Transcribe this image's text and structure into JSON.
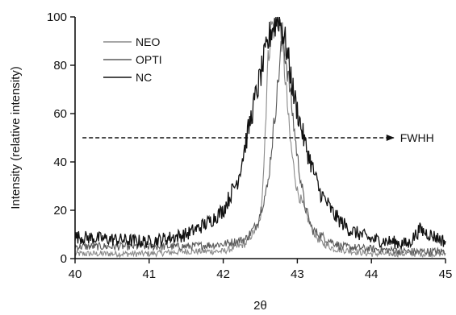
{
  "chart_data": {
    "type": "line",
    "title": "",
    "xlabel": "2θ",
    "ylabel": "Intensity (relative intensity)",
    "xlim": [
      40,
      45
    ],
    "ylim": [
      0,
      100
    ],
    "xticks": [
      40,
      41,
      42,
      43,
      44,
      45
    ],
    "yticks": [
      0,
      20,
      40,
      60,
      80,
      100
    ],
    "grid": false,
    "legend_position": "top-left",
    "series": [
      {
        "name": "NEO",
        "color": "#8a8a8a",
        "x": [
          40.0,
          40.5,
          41.0,
          41.5,
          42.0,
          42.3,
          42.5,
          42.55,
          42.6,
          42.65,
          42.7,
          42.75,
          42.8,
          42.85,
          42.9,
          42.95,
          43.0,
          43.1,
          43.2,
          43.3,
          43.5,
          44.0,
          44.5,
          45.0
        ],
        "y": [
          2,
          2,
          2,
          3,
          3,
          6,
          15,
          40,
          80,
          97,
          95,
          100,
          88,
          70,
          50,
          38,
          28,
          20,
          12,
          7,
          4,
          2,
          2,
          2
        ]
      },
      {
        "name": "OPTI",
        "color": "#5a5a5a",
        "x": [
          40.0,
          40.5,
          41.0,
          41.5,
          42.0,
          42.3,
          42.45,
          42.6,
          42.7,
          42.8,
          42.9,
          43.0,
          43.1,
          43.2,
          43.4,
          43.6,
          44.0,
          44.5,
          45.0
        ],
        "y": [
          5,
          5,
          5,
          5,
          6,
          8,
          14,
          30,
          60,
          93,
          70,
          42,
          22,
          12,
          8,
          5,
          4,
          3,
          3
        ]
      },
      {
        "name": "NC",
        "color": "#111111",
        "x": [
          40.0,
          40.5,
          41.0,
          41.5,
          41.8,
          42.0,
          42.2,
          42.4,
          42.55,
          42.65,
          42.75,
          42.85,
          42.95,
          43.1,
          43.3,
          43.5,
          43.7,
          44.0,
          44.5,
          44.65,
          45.0
        ],
        "y": [
          9,
          8,
          7,
          10,
          15,
          20,
          33,
          62,
          82,
          95,
          100,
          88,
          68,
          48,
          28,
          18,
          12,
          8,
          6,
          12,
          7
        ]
      }
    ],
    "annotations": [
      {
        "text": "FWHH",
        "type": "arrow",
        "x_start": 40.1,
        "x_end": 44.3,
        "y": 50
      }
    ]
  }
}
